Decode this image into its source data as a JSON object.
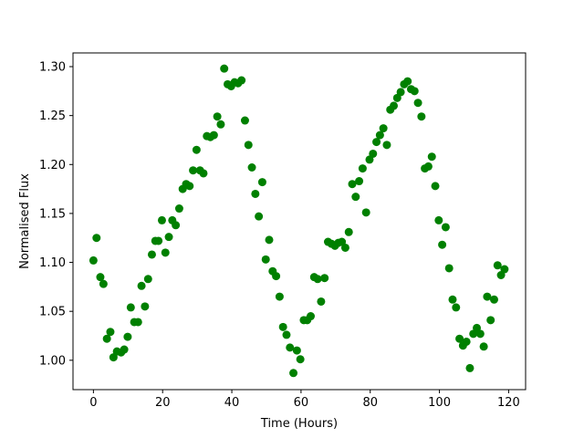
{
  "chart_data": {
    "type": "scatter",
    "title": "",
    "xlabel": "Time (Hours)",
    "ylabel": "Normalised Flux",
    "xlim": [
      -5.9,
      124.9
    ],
    "ylim": [
      0.97,
      1.314
    ],
    "xticks": [
      0,
      20,
      40,
      60,
      80,
      100,
      120
    ],
    "xtick_labels": [
      "0",
      "20",
      "40",
      "60",
      "80",
      "100",
      "120"
    ],
    "yticks": [
      1.0,
      1.05,
      1.1,
      1.15,
      1.2,
      1.25,
      1.3
    ],
    "ytick_labels": [
      "1.00",
      "1.05",
      "1.10",
      "1.15",
      "1.20",
      "1.25",
      "1.30"
    ],
    "grid": false,
    "legend": "none",
    "marker_color": "#008000",
    "series": [
      {
        "x": [
          0.0,
          0.9,
          2.0,
          2.9,
          3.9,
          4.9,
          5.8,
          6.8,
          8.0,
          8.9,
          9.9,
          10.8,
          11.8,
          12.9,
          13.9,
          14.9,
          15.8,
          16.9,
          17.9,
          18.8,
          19.8,
          20.8,
          21.8,
          22.8,
          23.8,
          24.8,
          25.8,
          26.8,
          27.8,
          28.8,
          29.8,
          30.8,
          31.8,
          32.8,
          33.8,
          34.8,
          35.8,
          36.8,
          37.8,
          38.8,
          39.8,
          40.8,
          41.8,
          42.8,
          43.8,
          44.8,
          45.8,
          46.8,
          47.8,
          48.8,
          49.8,
          50.8,
          51.8,
          52.8,
          53.8,
          54.8,
          55.8,
          56.8,
          57.8,
          58.8,
          59.8,
          60.8,
          61.8,
          62.8,
          63.8,
          64.8,
          65.8,
          66.8,
          67.8,
          68.8,
          69.8,
          70.8,
          71.8,
          72.8,
          73.8,
          74.8,
          75.8,
          76.8,
          77.8,
          78.8,
          79.8,
          80.8,
          81.8,
          82.8,
          83.8,
          84.8,
          85.8,
          86.8,
          87.8,
          88.8,
          89.8,
          90.8,
          91.8,
          92.8,
          93.8,
          94.8,
          95.8,
          96.8,
          97.8,
          98.8,
          99.8,
          100.8,
          101.8,
          102.8,
          103.8,
          104.8,
          105.8,
          106.8,
          107.8,
          108.8,
          109.8,
          110.8,
          111.8,
          112.8,
          113.8,
          114.8,
          115.8,
          116.8,
          117.8,
          118.8
        ],
        "y": [
          1.102,
          1.125,
          1.085,
          1.078,
          1.022,
          1.029,
          1.003,
          1.009,
          1.008,
          1.011,
          1.024,
          1.054,
          1.039,
          1.039,
          1.076,
          1.055,
          1.083,
          1.108,
          1.122,
          1.122,
          1.143,
          1.11,
          1.126,
          1.143,
          1.138,
          1.155,
          1.175,
          1.18,
          1.178,
          1.194,
          1.215,
          1.194,
          1.191,
          1.229,
          1.228,
          1.23,
          1.249,
          1.241,
          1.298,
          1.282,
          1.28,
          1.284,
          1.283,
          1.286,
          1.245,
          1.22,
          1.197,
          1.17,
          1.147,
          1.182,
          1.103,
          1.123,
          1.091,
          1.086,
          1.065,
          1.034,
          1.026,
          1.013,
          0.987,
          1.01,
          1.001,
          1.041,
          1.041,
          1.045,
          1.085,
          1.083,
          1.06,
          1.084,
          1.121,
          1.119,
          1.117,
          1.12,
          1.121,
          1.115,
          1.131,
          1.18,
          1.167,
          1.183,
          1.196,
          1.151,
          1.205,
          1.211,
          1.223,
          1.23,
          1.237,
          1.22,
          1.256,
          1.26,
          1.268,
          1.274,
          1.282,
          1.285,
          1.277,
          1.275,
          1.263,
          1.249,
          1.196,
          1.198,
          1.208,
          1.178,
          1.143,
          1.118,
          1.136,
          1.094,
          1.062,
          1.054,
          1.022,
          1.015,
          1.019,
          0.992,
          1.027,
          1.033,
          1.027,
          1.014,
          1.065,
          1.041,
          1.062,
          1.097,
          1.087,
          1.093
        ]
      }
    ]
  }
}
